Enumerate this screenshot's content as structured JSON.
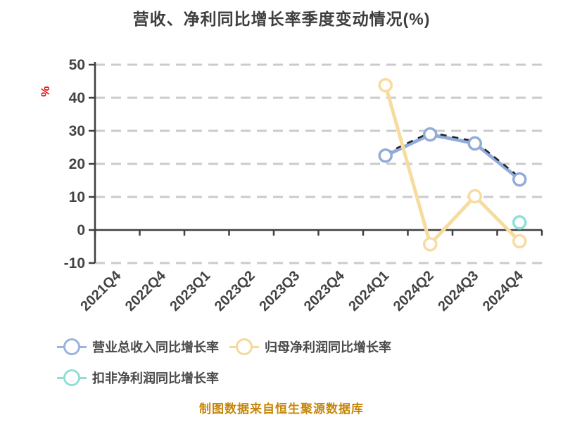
{
  "page": {
    "title": "营收、净利同比增长率季度变动情况(%)",
    "caption": "制图数据来自恒生聚源数据库"
  },
  "colors": {
    "background": "#FFFFFF",
    "title_text": "#3E3E3E",
    "axis_line": "#3F3F3F",
    "tick_label": "#434343",
    "gridline": "#CBCBCB",
    "y_unit_label": "#EE0000",
    "caption_text": "#C6860A",
    "revenue_series": "#92ACDA",
    "net_profit_series": "#F6D89B",
    "non_gaap_series": "#8FDFD9",
    "dark_dash_overlay": "#20222A",
    "legend_text": "#4A4A4A"
  },
  "legend": {
    "items": [
      {
        "label": "营业总收入同比增长率",
        "color": "#9AB3DF"
      },
      {
        "label": "归母净利润同比增长率",
        "color": "#F6D89B"
      },
      {
        "label": "扣非净利润同比增长率",
        "color": "#8FDFD9"
      }
    ]
  },
  "chart_data": {
    "type": "line",
    "title": "营收、净利同比增长率季度变动情况(%)",
    "xlabel": "",
    "ylabel": "%",
    "ylim": [
      -10,
      50
    ],
    "yticks": [
      50,
      40,
      30,
      20,
      10,
      0,
      -10
    ],
    "grid": "horizontal dashed",
    "legend_position": "bottom-left two rows",
    "categories": [
      "2021Q4",
      "2022Q4",
      "2023Q1",
      "2023Q2",
      "2023Q3",
      "2023Q4",
      "2024Q1",
      "2024Q2",
      "2024Q3",
      "2024Q4"
    ],
    "series": [
      {
        "name": "营业总收入同比增长率",
        "color": "#92ACDA",
        "marker": "circle-white-fill",
        "dark_dash_overlay": true,
        "values": [
          null,
          null,
          null,
          null,
          null,
          null,
          22.5,
          28.9,
          26.2,
          15.3
        ]
      },
      {
        "name": "归母净利润同比增长率",
        "color": "#F7DCA0",
        "marker": "circle-white-fill",
        "dark_dash_overlay": false,
        "values": [
          null,
          null,
          null,
          null,
          null,
          null,
          43.8,
          -4.3,
          10.2,
          -3.4
        ]
      },
      {
        "name": "扣非净利润同比增长率",
        "color": "#8FDFD9",
        "marker": "circle-white-fill",
        "dark_dash_overlay": false,
        "values": [
          null,
          null,
          null,
          null,
          null,
          null,
          null,
          null,
          null,
          2.3
        ]
      }
    ]
  }
}
